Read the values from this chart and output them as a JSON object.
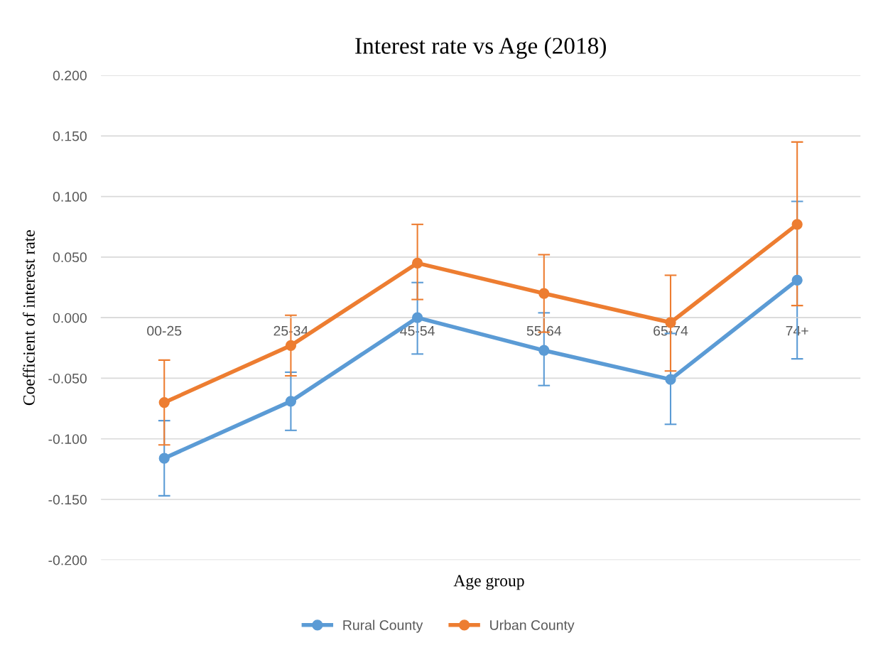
{
  "chart_data": {
    "type": "line",
    "title": "Interest rate vs Age (2018)",
    "xlabel": "Age group",
    "ylabel": "Coefficient of interest rate",
    "categories": [
      "00-25",
      "25-34",
      "45-54",
      "55-64",
      "65-74",
      "74+"
    ],
    "series": [
      {
        "name": "Rural County",
        "color": "#5b9bd5",
        "values": [
          -0.116,
          -0.069,
          0.0,
          -0.027,
          -0.051,
          0.031
        ],
        "errors": [
          [
            -0.147,
            -0.085
          ],
          [
            -0.093,
            -0.045
          ],
          [
            -0.03,
            0.029
          ],
          [
            -0.056,
            0.004
          ],
          [
            -0.088,
            -0.013
          ],
          [
            -0.034,
            0.096
          ]
        ]
      },
      {
        "name": "Urban County",
        "color": "#ed7d31",
        "values": [
          -0.07,
          -0.023,
          0.045,
          0.02,
          -0.004,
          0.077
        ],
        "errors": [
          [
            -0.105,
            -0.035
          ],
          [
            -0.048,
            0.002
          ],
          [
            0.015,
            0.077
          ],
          [
            -0.012,
            0.052
          ],
          [
            -0.044,
            0.035
          ],
          [
            0.01,
            0.145
          ]
        ]
      }
    ],
    "ylim": [
      -0.2,
      0.2
    ],
    "yticks": [
      {
        "value": -0.2,
        "label": "-0.200"
      },
      {
        "value": -0.15,
        "label": "-0.150"
      },
      {
        "value": -0.1,
        "label": "-0.100"
      },
      {
        "value": -0.05,
        "label": "-0.050"
      },
      {
        "value": 0,
        "label": "0.000"
      },
      {
        "value": 0.05,
        "label": "0.050"
      },
      {
        "value": 0.1,
        "label": "0.100"
      },
      {
        "value": 0.15,
        "label": "0.150"
      },
      {
        "value": 0.2,
        "label": "0.200"
      }
    ],
    "grid": "y",
    "legend": "bottom",
    "marker": "circle",
    "line_style": "solid"
  }
}
